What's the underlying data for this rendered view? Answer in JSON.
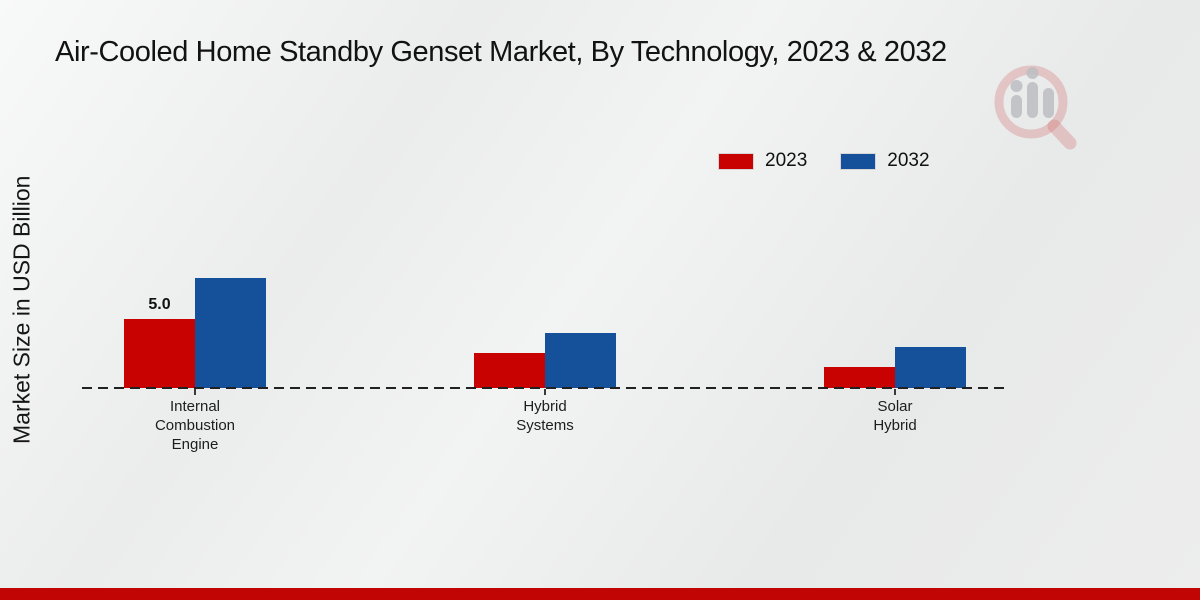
{
  "page": {
    "footer_bar_color": "#c10404",
    "watermark_icon": "magnifier-bar-chart-logo"
  },
  "chart_data": {
    "type": "bar",
    "title": "Air-Cooled Home Standby Genset Market, By Technology, 2023 & 2032",
    "xlabel": "",
    "ylabel": "Market Size in USD Billion",
    "categories": [
      "Internal Combustion Engine",
      "Hybrid Systems",
      "Solar Hybrid"
    ],
    "series": [
      {
        "name": "2023",
        "color": "#c80101",
        "values": [
          5.0,
          2.5,
          1.5
        ]
      },
      {
        "name": "2032",
        "color": "#15519b",
        "values": [
          8.0,
          4.0,
          3.0
        ]
      }
    ],
    "bar_labels": [
      {
        "series_index": 0,
        "category_index": 0,
        "text": "5.0"
      }
    ],
    "legend": {
      "position": "upper-right"
    },
    "baseline_style": "dashed",
    "grid": false,
    "y_axis_ticks_visible": false
  }
}
